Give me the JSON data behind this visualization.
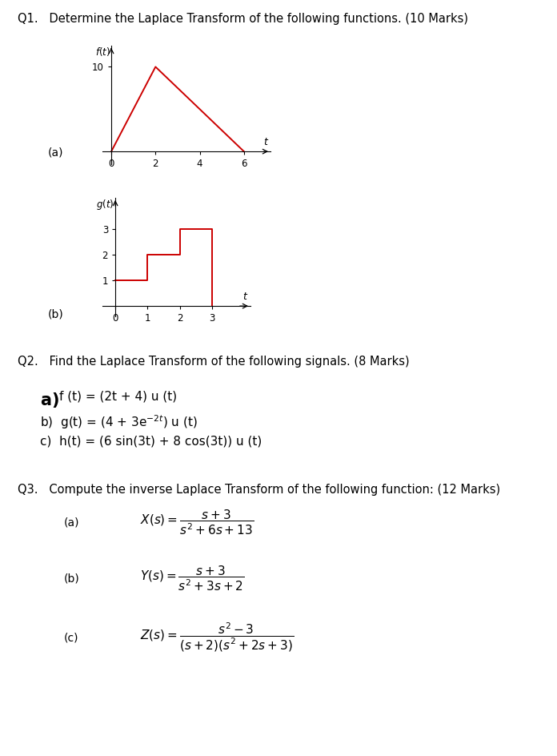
{
  "bg_color": "#ffffff",
  "text_color": "#000000",
  "plot_color": "#cc0000",
  "q1_title": "Q1.   Determine the Laplace Transform of the following functions. (10 Marks)",
  "q2_title": "Q2.   Find the Laplace Transform of the following signals. (8 Marks)",
  "q3_title": "Q3.   Compute the inverse Laplace Transform of the following function: (12 Marks)",
  "graph_a_xticks": [
    0,
    2,
    4,
    6
  ],
  "graph_a_yticks": [
    10
  ],
  "graph_a_t": [
    0,
    2,
    6
  ],
  "graph_a_f": [
    0,
    10,
    0
  ],
  "graph_b_xticks": [
    0,
    1,
    2,
    3
  ],
  "graph_b_yticks": [
    1,
    2,
    3
  ],
  "graph_b_t": [
    0,
    1,
    1,
    2,
    2,
    3,
    3
  ],
  "graph_b_g": [
    1,
    1,
    2,
    2,
    3,
    3,
    0
  ]
}
